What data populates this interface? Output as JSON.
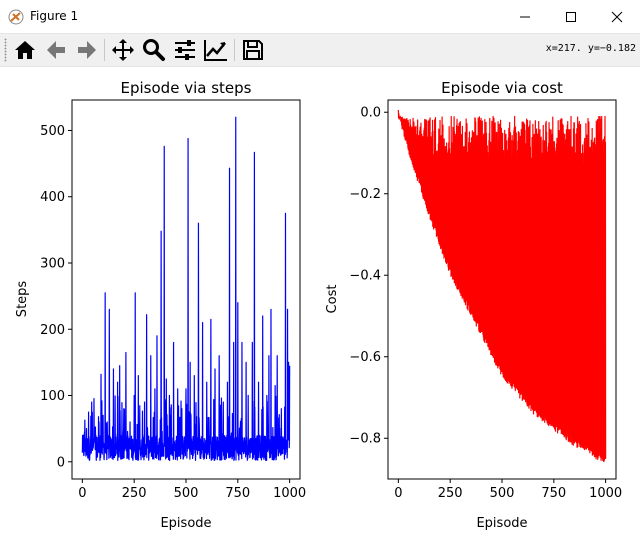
{
  "window": {
    "title": "Figure 1"
  },
  "toolbar": {
    "buttons": [
      "home-icon",
      "back-icon",
      "forward-icon",
      "pan-icon",
      "zoom-icon",
      "subplots-icon",
      "customize-icon",
      "save-icon"
    ],
    "coords": "x=217. y=−0.182"
  },
  "colors": {
    "steps_line": "#0000ff",
    "cost_line": "#ff0000"
  },
  "chart_data": [
    {
      "type": "line",
      "title": "Episode via steps",
      "xlabel": "Episode",
      "ylabel": "Steps",
      "xlim": [
        -50,
        1050
      ],
      "ylim": [
        -26,
        546
      ],
      "xticks": [
        0,
        250,
        500,
        750,
        1000
      ],
      "xtick_labels": [
        "0",
        "250",
        "500",
        "750",
        "1000"
      ],
      "yticks": [
        0,
        100,
        200,
        300,
        400,
        500
      ],
      "ytick_labels": [
        "0",
        "100",
        "200",
        "300",
        "400",
        "500"
      ],
      "grid": false,
      "series": [
        {
          "color": "#0000ff",
          "base_range": [
            2,
            40
          ],
          "peaks": [
            [
              5,
              40
            ],
            [
              10,
              45
            ],
            [
              20,
              50
            ],
            [
              30,
              75
            ],
            [
              45,
              90
            ],
            [
              60,
              50
            ],
            [
              80,
              60
            ],
            [
              90,
              132
            ],
            [
              100,
              70
            ],
            [
              110,
              255
            ],
            [
              120,
              60
            ],
            [
              130,
              230
            ],
            [
              150,
              140
            ],
            [
              170,
              120
            ],
            [
              180,
              145
            ],
            [
              200,
              80
            ],
            [
              210,
              165
            ],
            [
              230,
              60
            ],
            [
              250,
              100
            ],
            [
              255,
              255
            ],
            [
              270,
              130
            ],
            [
              300,
              90
            ],
            [
              310,
              222
            ],
            [
              330,
              160
            ],
            [
              350,
              110
            ],
            [
              360,
              190
            ],
            [
              380,
              348
            ],
            [
              395,
              476
            ],
            [
              405,
              125
            ],
            [
              420,
              100
            ],
            [
              440,
              180
            ],
            [
              460,
              110
            ],
            [
              480,
              80
            ],
            [
              500,
              110
            ],
            [
              510,
              488
            ],
            [
              520,
              150
            ],
            [
              540,
              130
            ],
            [
              560,
              360
            ],
            [
              580,
              210
            ],
            [
              600,
              120
            ],
            [
              620,
              215
            ],
            [
              640,
              140
            ],
            [
              660,
              160
            ],
            [
              680,
              90
            ],
            [
              700,
              120
            ],
            [
              710,
              443
            ],
            [
              730,
              180
            ],
            [
              740,
              520
            ],
            [
              750,
              240
            ],
            [
              770,
              180
            ],
            [
              790,
              150
            ],
            [
              800,
              100
            ],
            [
              820,
              180
            ],
            [
              830,
              467
            ],
            [
              850,
              120
            ],
            [
              870,
              220
            ],
            [
              890,
              100
            ],
            [
              900,
              160
            ],
            [
              910,
              230
            ],
            [
              930,
              115
            ],
            [
              940,
              160
            ],
            [
              960,
              80
            ],
            [
              980,
              375
            ],
            [
              990,
              230
            ],
            [
              995,
              150
            ],
            [
              1000,
              145
            ]
          ]
        }
      ]
    },
    {
      "type": "line",
      "title": "Episode via cost",
      "xlabel": "Episode",
      "ylabel": "Cost",
      "xlim": [
        -50,
        1050
      ],
      "ylim": [
        -0.9,
        0.03
      ],
      "xticks": [
        0,
        250,
        500,
        750,
        1000
      ],
      "xtick_labels": [
        "0",
        "250",
        "500",
        "750",
        "1000"
      ],
      "yticks": [
        0.0,
        -0.2,
        -0.4,
        -0.6,
        -0.8
      ],
      "ytick_labels": [
        "0.0",
        "−0.2",
        "−0.4",
        "−0.6",
        "−0.8"
      ],
      "grid": false,
      "series": [
        {
          "color": "#ff0000",
          "top": -0.01,
          "lower_envelope": [
            [
              0,
              -0.01
            ],
            [
              50,
              -0.1
            ],
            [
              100,
              -0.18
            ],
            [
              150,
              -0.26
            ],
            [
              200,
              -0.33
            ],
            [
              250,
              -0.4
            ],
            [
              300,
              -0.45
            ],
            [
              350,
              -0.5
            ],
            [
              400,
              -0.55
            ],
            [
              450,
              -0.6
            ],
            [
              500,
              -0.65
            ],
            [
              550,
              -0.68
            ],
            [
              600,
              -0.71
            ],
            [
              650,
              -0.74
            ],
            [
              700,
              -0.76
            ],
            [
              750,
              -0.78
            ],
            [
              800,
              -0.8
            ],
            [
              850,
              -0.82
            ],
            [
              900,
              -0.83
            ],
            [
              950,
              -0.85
            ],
            [
              1000,
              -0.86
            ]
          ]
        }
      ]
    }
  ]
}
